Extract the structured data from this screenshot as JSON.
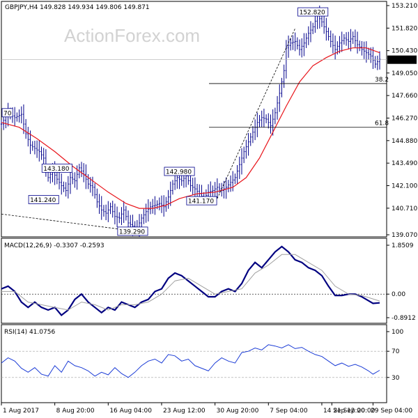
{
  "header": {
    "symbol_label": "GBPJPY,H4  149.828 149.934 149.806 149.871",
    "watermark": "ActionForex.com"
  },
  "colors": {
    "candle": "#00008b",
    "ma": "#e8141a",
    "macd": "#000080",
    "signal": "#a0a0a0",
    "rsi": "#1a3bd6",
    "fib": "#000000",
    "frame": "#000000"
  },
  "chart_data": [
    {
      "type": "candlestick",
      "panel": "price",
      "ylim": [
        139.07,
        153.21
      ],
      "y_ticks": [
        153.21,
        151.82,
        150.43,
        149.05,
        147.66,
        146.27,
        144.88,
        143.49,
        142.1,
        140.71,
        139.07
      ],
      "y_tick_labels": [
        "153.210",
        "151.820",
        "150.430",
        "149.050",
        "147.660",
        "146.270",
        "144.880",
        "143.490",
        "142.100",
        "140.710",
        "139.070"
      ],
      "last_price": 149.871,
      "last_price_label": "149.871",
      "close_path": [
        [
          0,
          145.9
        ],
        [
          3,
          146.6
        ],
        [
          6,
          146.3
        ],
        [
          9,
          146.5
        ],
        [
          11,
          145.3
        ],
        [
          13,
          144.6
        ],
        [
          15,
          144.4
        ],
        [
          17,
          144.2
        ],
        [
          19,
          143.8
        ],
        [
          21,
          142.6
        ],
        [
          23,
          143.0
        ],
        [
          25,
          142.5
        ],
        [
          27,
          142.1
        ],
        [
          29,
          141.8
        ],
        [
          31,
          142.6
        ],
        [
          33,
          142.4
        ],
        [
          35,
          143.2
        ],
        [
          37,
          142.8
        ],
        [
          39,
          142.2
        ],
        [
          41,
          142.0
        ],
        [
          43,
          141.1
        ],
        [
          45,
          140.6
        ],
        [
          47,
          140.4
        ],
        [
          49,
          140.8
        ],
        [
          51,
          140.2
        ],
        [
          53,
          140.1
        ],
        [
          55,
          140.6
        ],
        [
          57,
          139.8
        ],
        [
          59,
          139.6
        ],
        [
          61,
          139.5
        ],
        [
          63,
          140.1
        ],
        [
          65,
          140.5
        ],
        [
          67,
          140.8
        ],
        [
          69,
          140.9
        ],
        [
          71,
          141.0
        ],
        [
          73,
          140.8
        ],
        [
          75,
          141.4
        ],
        [
          77,
          142.2
        ],
        [
          79,
          142.6
        ],
        [
          81,
          142.4
        ],
        [
          83,
          142.7
        ],
        [
          85,
          142.1
        ],
        [
          87,
          141.9
        ],
        [
          89,
          141.6
        ],
        [
          91,
          141.3
        ],
        [
          93,
          141.7
        ],
        [
          95,
          141.8
        ],
        [
          97,
          142.0
        ],
        [
          99,
          141.8
        ],
        [
          101,
          142.0
        ],
        [
          103,
          142.3
        ],
        [
          105,
          142.6
        ],
        [
          107,
          143.4
        ],
        [
          109,
          144.2
        ],
        [
          111,
          144.8
        ],
        [
          113,
          145.4
        ],
        [
          115,
          146.0
        ],
        [
          117,
          146.3
        ],
        [
          119,
          146.2
        ],
        [
          121,
          145.8
        ],
        [
          123,
          146.6
        ],
        [
          125,
          147.8
        ],
        [
          127,
          149.2
        ],
        [
          128,
          150.6
        ],
        [
          130,
          150.9
        ],
        [
          132,
          151.0
        ],
        [
          134,
          150.5
        ],
        [
          136,
          150.9
        ],
        [
          138,
          151.5
        ],
        [
          140,
          151.9
        ],
        [
          142,
          152.6
        ],
        [
          144,
          152.2
        ],
        [
          146,
          151.6
        ],
        [
          148,
          151.0
        ],
        [
          150,
          150.5
        ],
        [
          152,
          150.9
        ],
        [
          154,
          151.2
        ],
        [
          156,
          151.0
        ],
        [
          158,
          151.3
        ],
        [
          160,
          150.8
        ],
        [
          162,
          150.5
        ],
        [
          164,
          150.3
        ],
        [
          166,
          150.1
        ],
        [
          168,
          149.6
        ],
        [
          170,
          149.9
        ]
      ],
      "ma_path": [
        [
          0,
          146.0
        ],
        [
          8,
          145.7
        ],
        [
          16,
          145.0
        ],
        [
          24,
          144.2
        ],
        [
          32,
          143.3
        ],
        [
          40,
          142.5
        ],
        [
          48,
          141.7
        ],
        [
          56,
          141.0
        ],
        [
          62,
          140.7
        ],
        [
          68,
          140.7
        ],
        [
          74,
          140.9
        ],
        [
          80,
          141.3
        ],
        [
          88,
          141.6
        ],
        [
          96,
          141.7
        ],
        [
          104,
          142.0
        ],
        [
          110,
          142.6
        ],
        [
          116,
          143.8
        ],
        [
          122,
          145.4
        ],
        [
          128,
          147.0
        ],
        [
          134,
          148.5
        ],
        [
          140,
          149.5
        ],
        [
          146,
          150.0
        ],
        [
          152,
          150.4
        ],
        [
          158,
          150.6
        ],
        [
          164,
          150.6
        ],
        [
          170,
          150.3
        ]
      ],
      "annotations": [
        {
          "text": "152.820",
          "x": 140,
          "y": 152.82
        },
        {
          "text": "143.180",
          "x": 25,
          "y": 143.18
        },
        {
          "text": "142.980",
          "x": 80,
          "y": 142.98
        },
        {
          "text": "141.240",
          "x": 19,
          "y": 141.24
        },
        {
          "text": "141.170",
          "x": 90,
          "y": 141.17
        },
        {
          "text": "139.290",
          "x": 59,
          "y": 139.29
        },
        {
          "text": "70",
          "x": 1,
          "y": 146.6
        }
      ],
      "fib_levels": [
        {
          "label": "38.2",
          "value": 148.4
        },
        {
          "label": "61.8",
          "value": 145.7
        }
      ],
      "trendlines": [
        {
          "from": [
            0,
            140.35
          ],
          "to": [
            60,
            139.3
          ]
        },
        {
          "from": [
            97,
            141.3
          ],
          "to": [
            132,
            151.8
          ]
        }
      ]
    },
    {
      "type": "line",
      "panel": "macd",
      "title": "MACD(12,26,9) -0.3307 -0.2593",
      "ylim": [
        -0.8912,
        1.8509
      ],
      "y_ticks": [
        1.8509,
        0.0,
        -0.8912
      ],
      "y_tick_labels": [
        "1.8509",
        "0.00",
        "-0.8912"
      ],
      "series": [
        {
          "role": "macd",
          "values": [
            [
              0,
              0.2
            ],
            [
              3,
              0.3
            ],
            [
              6,
              0.1
            ],
            [
              9,
              -0.3
            ],
            [
              12,
              -0.5
            ],
            [
              15,
              -0.3
            ],
            [
              18,
              -0.5
            ],
            [
              21,
              -0.6
            ],
            [
              24,
              -0.5
            ],
            [
              27,
              -0.8
            ],
            [
              30,
              -0.6
            ],
            [
              33,
              -0.2
            ],
            [
              36,
              0.0
            ],
            [
              39,
              -0.3
            ],
            [
              42,
              -0.5
            ],
            [
              45,
              -0.7
            ],
            [
              48,
              -0.5
            ],
            [
              51,
              -0.6
            ],
            [
              54,
              -0.3
            ],
            [
              57,
              -0.4
            ],
            [
              60,
              -0.5
            ],
            [
              63,
              -0.3
            ],
            [
              66,
              -0.2
            ],
            [
              69,
              0.1
            ],
            [
              72,
              0.2
            ],
            [
              75,
              0.6
            ],
            [
              78,
              0.8
            ],
            [
              81,
              0.7
            ],
            [
              84,
              0.5
            ],
            [
              87,
              0.3
            ],
            [
              90,
              0.1
            ],
            [
              93,
              -0.1
            ],
            [
              96,
              -0.1
            ],
            [
              99,
              0.1
            ],
            [
              102,
              0.2
            ],
            [
              105,
              0.1
            ],
            [
              108,
              0.4
            ],
            [
              111,
              0.9
            ],
            [
              114,
              1.2
            ],
            [
              117,
              1.0
            ],
            [
              120,
              1.3
            ],
            [
              123,
              1.6
            ],
            [
              126,
              1.8
            ],
            [
              129,
              1.6
            ],
            [
              132,
              1.3
            ],
            [
              135,
              1.2
            ],
            [
              138,
              1.0
            ],
            [
              141,
              0.9
            ],
            [
              144,
              0.7
            ],
            [
              147,
              0.3
            ],
            [
              150,
              -0.05
            ],
            [
              153,
              -0.05
            ],
            [
              156,
              0.0
            ],
            [
              159,
              0.0
            ],
            [
              162,
              -0.1
            ],
            [
              165,
              -0.25
            ],
            [
              167,
              -0.35
            ],
            [
              170,
              -0.33
            ]
          ]
        },
        {
          "role": "signal",
          "values": [
            [
              0,
              0.1
            ],
            [
              6,
              0.1
            ],
            [
              12,
              -0.3
            ],
            [
              18,
              -0.4
            ],
            [
              24,
              -0.5
            ],
            [
              30,
              -0.6
            ],
            [
              36,
              -0.3
            ],
            [
              42,
              -0.4
            ],
            [
              48,
              -0.6
            ],
            [
              54,
              -0.4
            ],
            [
              60,
              -0.4
            ],
            [
              66,
              -0.3
            ],
            [
              72,
              0.0
            ],
            [
              78,
              0.5
            ],
            [
              84,
              0.6
            ],
            [
              90,
              0.3
            ],
            [
              96,
              0.0
            ],
            [
              102,
              0.1
            ],
            [
              108,
              0.2
            ],
            [
              114,
              0.8
            ],
            [
              120,
              1.1
            ],
            [
              126,
              1.5
            ],
            [
              132,
              1.5
            ],
            [
              138,
              1.2
            ],
            [
              144,
              0.9
            ],
            [
              150,
              0.3
            ],
            [
              156,
              0.0
            ],
            [
              162,
              -0.05
            ],
            [
              170,
              -0.26
            ]
          ]
        }
      ]
    },
    {
      "type": "line",
      "panel": "rsi",
      "title": "RSI(14) 41.0756",
      "ylim": [
        0,
        100
      ],
      "y_ticks": [
        100,
        70,
        30
      ],
      "y_tick_labels": [
        "100",
        "70",
        "30"
      ],
      "series": [
        {
          "role": "rsi",
          "values": [
            [
              0,
              52
            ],
            [
              3,
              60
            ],
            [
              6,
              55
            ],
            [
              9,
              44
            ],
            [
              12,
              38
            ],
            [
              15,
              45
            ],
            [
              18,
              35
            ],
            [
              21,
              32
            ],
            [
              24,
              48
            ],
            [
              27,
              38
            ],
            [
              30,
              55
            ],
            [
              33,
              48
            ],
            [
              36,
              45
            ],
            [
              39,
              40
            ],
            [
              42,
              32
            ],
            [
              45,
              38
            ],
            [
              48,
              34
            ],
            [
              51,
              45
            ],
            [
              54,
              36
            ],
            [
              57,
              30
            ],
            [
              60,
              38
            ],
            [
              63,
              48
            ],
            [
              66,
              55
            ],
            [
              69,
              58
            ],
            [
              72,
              52
            ],
            [
              75,
              65
            ],
            [
              78,
              63
            ],
            [
              81,
              55
            ],
            [
              84,
              58
            ],
            [
              87,
              48
            ],
            [
              90,
              44
            ],
            [
              93,
              40
            ],
            [
              96,
              52
            ],
            [
              99,
              60
            ],
            [
              102,
              55
            ],
            [
              105,
              52
            ],
            [
              108,
              68
            ],
            [
              111,
              70
            ],
            [
              114,
              75
            ],
            [
              117,
              72
            ],
            [
              120,
              80
            ],
            [
              123,
              78
            ],
            [
              126,
              75
            ],
            [
              129,
              80
            ],
            [
              132,
              74
            ],
            [
              135,
              76
            ],
            [
              138,
              70
            ],
            [
              141,
              65
            ],
            [
              144,
              62
            ],
            [
              147,
              55
            ],
            [
              150,
              48
            ],
            [
              153,
              52
            ],
            [
              156,
              47
            ],
            [
              159,
              50
            ],
            [
              162,
              46
            ],
            [
              165,
              40
            ],
            [
              167,
              35
            ],
            [
              170,
              41
            ]
          ]
        }
      ]
    }
  ],
  "x_axis": {
    "ticks": [
      {
        "label": "1 Aug 2017",
        "x": 0
      },
      {
        "label": "8 Aug 20:00",
        "x": 24
      },
      {
        "label": "16 Aug 04:00",
        "x": 48
      },
      {
        "label": "23 Aug 12:00",
        "x": 72
      },
      {
        "label": "30 Aug 20:00",
        "x": 96
      },
      {
        "label": "7 Sep 04:00",
        "x": 120
      },
      {
        "label": "14 Sep 12:00",
        "x": 144
      },
      {
        "label": "21 Sep 20:00",
        "x": 148.5
      },
      {
        "label": "29 Sep 04:00",
        "x": 167
      }
    ],
    "xmax": 170
  }
}
